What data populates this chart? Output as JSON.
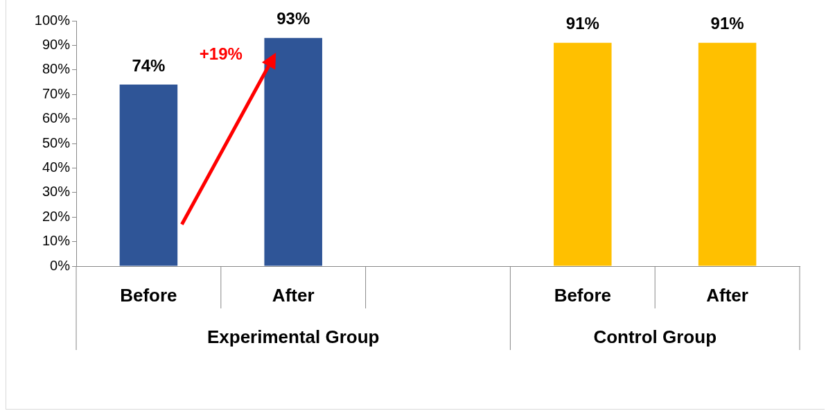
{
  "chart_data": {
    "type": "bar",
    "categories": [
      "Before",
      "After",
      null,
      "Before",
      "After"
    ],
    "values": [
      74,
      93,
      null,
      91,
      91
    ],
    "colors": [
      "#2f5597",
      "#2f5597",
      "#2f5597",
      "#ffc000",
      "#ffc000"
    ],
    "ylim": [
      0,
      100
    ],
    "yticks": [
      {
        "value": 0,
        "label": "0%"
      },
      {
        "value": 10,
        "label": "10%"
      },
      {
        "value": 20,
        "label": "20%"
      },
      {
        "value": 30,
        "label": "30%"
      },
      {
        "value": 40,
        "label": "40%"
      },
      {
        "value": 50,
        "label": "50%"
      },
      {
        "value": 60,
        "label": "60%"
      },
      {
        "value": 70,
        "label": "70%"
      },
      {
        "value": 80,
        "label": "80%"
      },
      {
        "value": 90,
        "label": "90%"
      },
      {
        "value": 100,
        "label": "100%"
      }
    ],
    "value_labels": [
      "74%",
      "93%",
      null,
      "91%",
      "91%"
    ],
    "annotations": [
      "Experimental Group",
      "Control Group",
      "+19%"
    ],
    "grid": false,
    "legend": false
  }
}
